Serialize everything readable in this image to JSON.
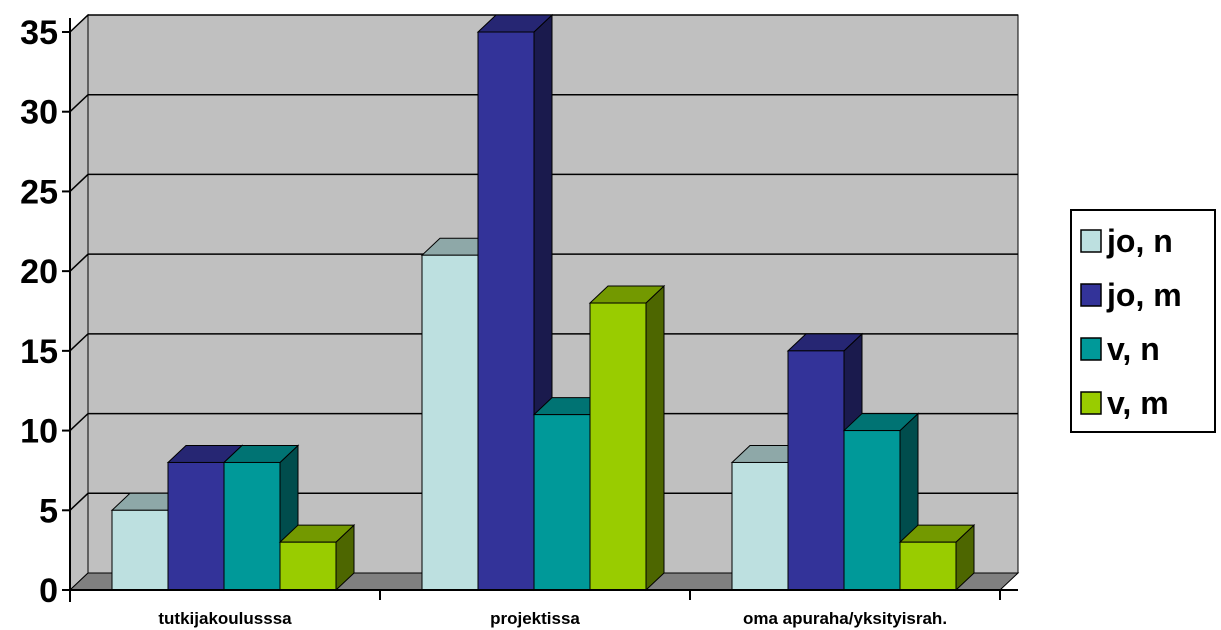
{
  "chart_data": {
    "type": "bar",
    "categories": [
      "tutkijakoulusssa",
      "projektissa",
      "oma apuraha/yksityisrah."
    ],
    "series": [
      {
        "name": "jo, n",
        "values": [
          5,
          21,
          8
        ],
        "color": "#bde0e0"
      },
      {
        "name": "jo, m",
        "values": [
          8,
          35,
          15
        ],
        "color": "#333399"
      },
      {
        "name": "v, n",
        "values": [
          8,
          11,
          10
        ],
        "color": "#009999"
      },
      {
        "name": "v, m",
        "values": [
          3,
          18,
          3
        ],
        "color": "#99cc00"
      }
    ],
    "yticks": [
      "0",
      "5",
      "10",
      "15",
      "20",
      "25",
      "30",
      "35"
    ],
    "ylim": [
      0,
      35
    ],
    "grid": true,
    "legend_position": "right",
    "wall_color": "#c0c0c0",
    "floor_color": "#808080"
  }
}
